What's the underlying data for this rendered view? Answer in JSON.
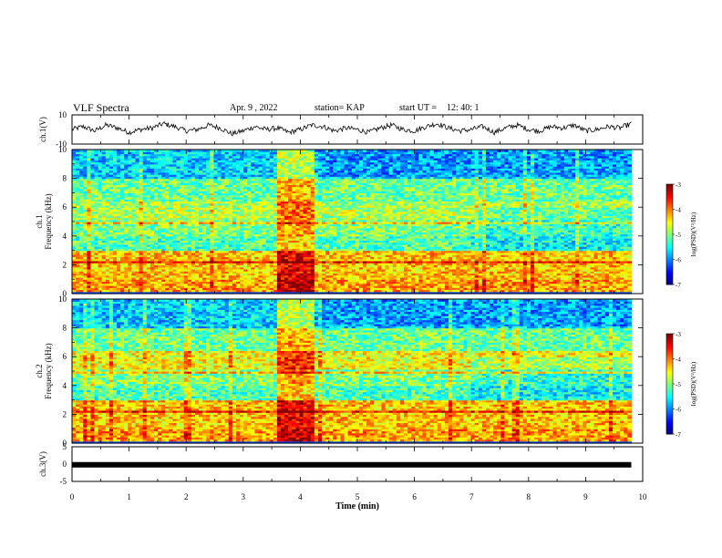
{
  "header": {
    "title": "VLF Spectra",
    "date": "Apr. 9 , 2022",
    "station": "station= KAP",
    "start_label": "start UT =",
    "start_time": "12: 40: 1"
  },
  "chart_data": [
    {
      "type": "line",
      "panel": "ch1-waveform",
      "ylabel": "ch.1(V)",
      "ylim": [
        -10,
        10
      ],
      "yticks": [
        "10",
        "-10"
      ],
      "xlim": [
        0,
        10
      ],
      "x_extent": [
        0,
        9.8
      ],
      "series": [
        {
          "values": [
            0,
            2,
            -1,
            3,
            1,
            -2,
            0,
            1,
            4,
            2,
            -1,
            0,
            3,
            1,
            -3,
            -1,
            2,
            0,
            1,
            -2,
            0,
            3,
            2,
            -1,
            1,
            0,
            -2,
            1,
            3,
            0,
            -1,
            2,
            4,
            1,
            -1,
            0,
            2,
            -2,
            1,
            3,
            0,
            -1,
            2,
            1,
            3,
            -1,
            0,
            2,
            1,
            4
          ]
        }
      ]
    },
    {
      "type": "heatmap",
      "panel": "ch1-spectrogram",
      "ylabel": "ch.1",
      "ylabel2": "Frequency (kHz)",
      "ylim": [
        0,
        10
      ],
      "yticks": [
        "0",
        "2",
        "4",
        "6",
        "8",
        "10"
      ],
      "xlim": [
        0,
        10
      ],
      "x_extent": [
        0,
        9.8
      ],
      "burst": [
        3.6,
        4.25
      ],
      "colorbar": {
        "label": "log(PSD)(V²/Hz)",
        "range": [
          -7,
          -3
        ],
        "ticks": [
          "-3",
          "-4",
          "-5",
          "-6",
          "-7"
        ]
      }
    },
    {
      "type": "heatmap",
      "panel": "ch2-spectrogram",
      "ylabel": "ch.2",
      "ylabel2": "Frequency (kHz)",
      "ylim": [
        0,
        10
      ],
      "yticks": [
        "0",
        "2",
        "4",
        "6",
        "8",
        "10"
      ],
      "xlim": [
        0,
        10
      ],
      "x_extent": [
        0,
        9.8
      ],
      "burst": [
        3.6,
        4.25
      ],
      "colorbar": {
        "label": "log(PSD)(V²/Hz)",
        "range": [
          -7,
          -3
        ],
        "ticks": [
          "-3",
          "-4",
          "-5",
          "-6",
          "-7"
        ]
      }
    },
    {
      "type": "line",
      "panel": "ch3-waveform",
      "ylabel": "ch.3(V)",
      "ylim": [
        -5,
        5
      ],
      "yticks": [
        "5",
        "0",
        "-5"
      ],
      "xlim": [
        0,
        10
      ],
      "x_extent": [
        0,
        9.8
      ],
      "level": -0.2
    }
  ],
  "xaxis": {
    "label": "Time (min)",
    "ticks": [
      "0",
      "1",
      "2",
      "3",
      "4",
      "5",
      "6",
      "7",
      "8",
      "9",
      "10"
    ]
  }
}
